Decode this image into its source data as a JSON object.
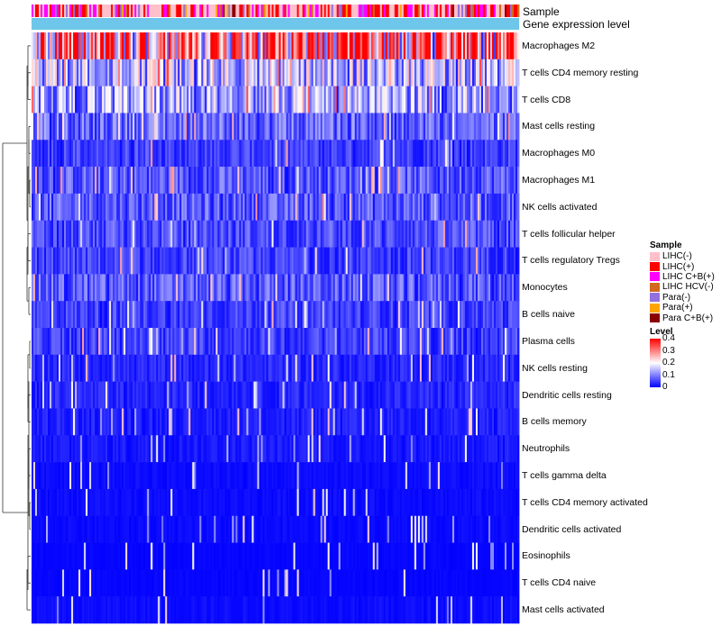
{
  "chart_data": {
    "type": "heatmap",
    "title": "",
    "column_annotations": [
      "Sample",
      "Gene expression level"
    ],
    "rows": [
      {
        "label": "Macrophages M2",
        "mean_level": 0.3
      },
      {
        "label": "T cells CD4 memory resting",
        "mean_level": 0.15
      },
      {
        "label": "T cells CD8",
        "mean_level": 0.13
      },
      {
        "label": "Mast cells resting",
        "mean_level": 0.08
      },
      {
        "label": "Macrophages M0",
        "mean_level": 0.05
      },
      {
        "label": "Macrophages M1",
        "mean_level": 0.07
      },
      {
        "label": "NK cells activated",
        "mean_level": 0.07
      },
      {
        "label": "T cells follicular helper",
        "mean_level": 0.06
      },
      {
        "label": "T cells regulatory  Tregs",
        "mean_level": 0.05
      },
      {
        "label": "Monocytes",
        "mean_level": 0.07
      },
      {
        "label": "B cells naive",
        "mean_level": 0.05
      },
      {
        "label": "Plasma cells",
        "mean_level": 0.05
      },
      {
        "label": "NK cells resting",
        "mean_level": 0.03
      },
      {
        "label": "Dendritic cells resting",
        "mean_level": 0.03
      },
      {
        "label": "B cells memory",
        "mean_level": 0.025
      },
      {
        "label": "Neutrophils",
        "mean_level": 0.02
      },
      {
        "label": "T cells gamma delta",
        "mean_level": 0.01
      },
      {
        "label": "T cells CD4 memory activated",
        "mean_level": 0.01
      },
      {
        "label": "Dendritic cells activated",
        "mean_level": 0.008
      },
      {
        "label": "Eosinophils",
        "mean_level": 0.005
      },
      {
        "label": "T cells CD4 naive",
        "mean_level": 0.005
      },
      {
        "label": "Mast cells activated",
        "mean_level": 0.01
      }
    ],
    "sample_legend": {
      "title": "Sample",
      "items": [
        {
          "label": "LIHC(-)",
          "color": "#ffc0cb"
        },
        {
          "label": "LIHC(+)",
          "color": "#ff0000"
        },
        {
          "label": "LIHC C+B(+)",
          "color": "#ff00ff"
        },
        {
          "label": "LIHC HCV(-)",
          "color": "#d2691e"
        },
        {
          "label": "Para(-)",
          "color": "#9370db"
        },
        {
          "label": "Para(+)",
          "color": "#ffa500"
        },
        {
          "label": "Para C+B(+)",
          "color": "#8b0000"
        }
      ]
    },
    "level_legend": {
      "title": "Level",
      "ticks": [
        "0.4",
        "0.3",
        "0.2",
        "0.1",
        "0"
      ],
      "range": [
        0,
        0.4
      ],
      "colors": [
        "#0000ff",
        "#ffffff",
        "#ff0000"
      ]
    },
    "gene_expression_color": "#6ec6ea"
  }
}
